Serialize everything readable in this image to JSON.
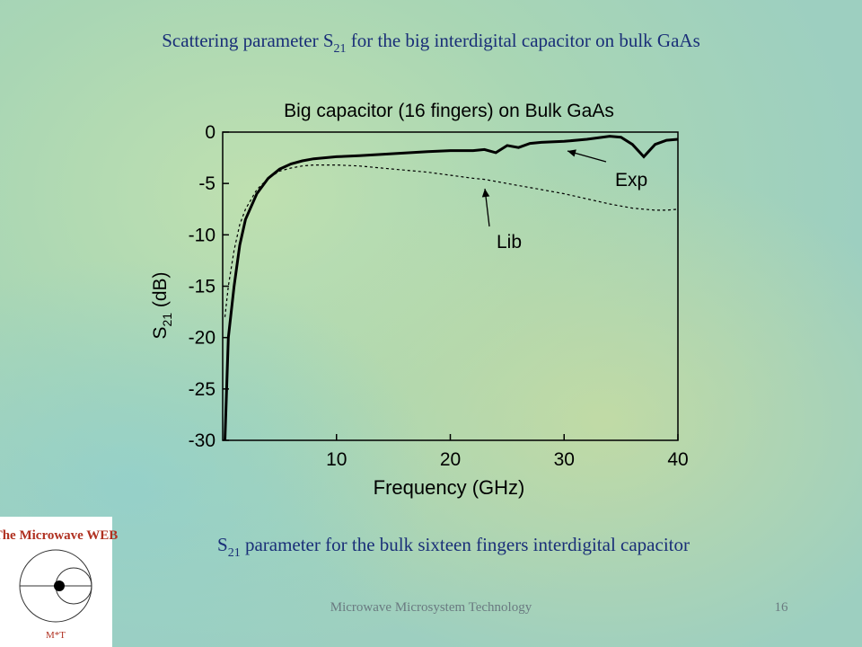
{
  "slide": {
    "title": {
      "before": "Scattering parameter S",
      "subscript": "21",
      "after": " for the big interdigital capacitor on bulk GaAs"
    },
    "caption": {
      "before": "S",
      "subscript": "21",
      "after": " parameter for the bulk sixteen fingers interdigital capacitor"
    },
    "footer": "Microwave Microsystem Technology",
    "page_number": "16",
    "logo": {
      "title": "The Microwave WEB",
      "mark": "M*T"
    }
  },
  "chart_data": {
    "type": "line",
    "title": "Big capacitor (16 fingers) on Bulk GaAs",
    "x_label": "Frequency (GHz)",
    "y_label": {
      "before": "S",
      "subscript": "21",
      "after": " (dB)"
    },
    "xlim": [
      0,
      40
    ],
    "xticks": [
      10,
      20,
      30,
      40
    ],
    "ylim": [
      -30,
      0
    ],
    "yticks": [
      0,
      -5,
      -10,
      -15,
      -20,
      -25,
      -30
    ],
    "x": [
      0.2,
      0.5,
      1,
      1.5,
      2,
      3,
      4,
      5,
      6,
      7,
      8,
      10,
      12,
      15,
      18,
      20,
      22,
      23,
      24,
      25,
      26,
      27,
      28,
      30,
      32,
      34,
      35,
      36,
      37,
      38,
      39,
      40
    ],
    "series": [
      {
        "name": "Exp",
        "color": "#000000",
        "dashed": false,
        "values": [
          -30,
          -20,
          -15,
          -11,
          -8.5,
          -6,
          -4.5,
          -3.6,
          -3.1,
          -2.8,
          -2.6,
          -2.4,
          -2.3,
          -2.1,
          -1.9,
          -1.8,
          -1.8,
          -1.7,
          -2.0,
          -1.3,
          -1.5,
          -1.1,
          -1.0,
          -0.9,
          -0.7,
          -0.4,
          -0.5,
          -1.2,
          -2.4,
          -1.2,
          -0.8,
          -0.7
        ]
      },
      {
        "name": "Lib",
        "color": "#000000",
        "dashed": true,
        "values": [
          -18,
          -15,
          -11.5,
          -9,
          -7.5,
          -5.6,
          -4.5,
          -3.8,
          -3.5,
          -3.3,
          -3.2,
          -3.2,
          -3.3,
          -3.6,
          -3.9,
          -4.2,
          -4.5,
          -4.6,
          -4.8,
          -5.0,
          -5.2,
          -5.4,
          -5.6,
          -6.0,
          -6.5,
          -7.0,
          -7.2,
          -7.4,
          -7.5,
          -7.6,
          -7.6,
          -7.5
        ]
      }
    ]
  }
}
